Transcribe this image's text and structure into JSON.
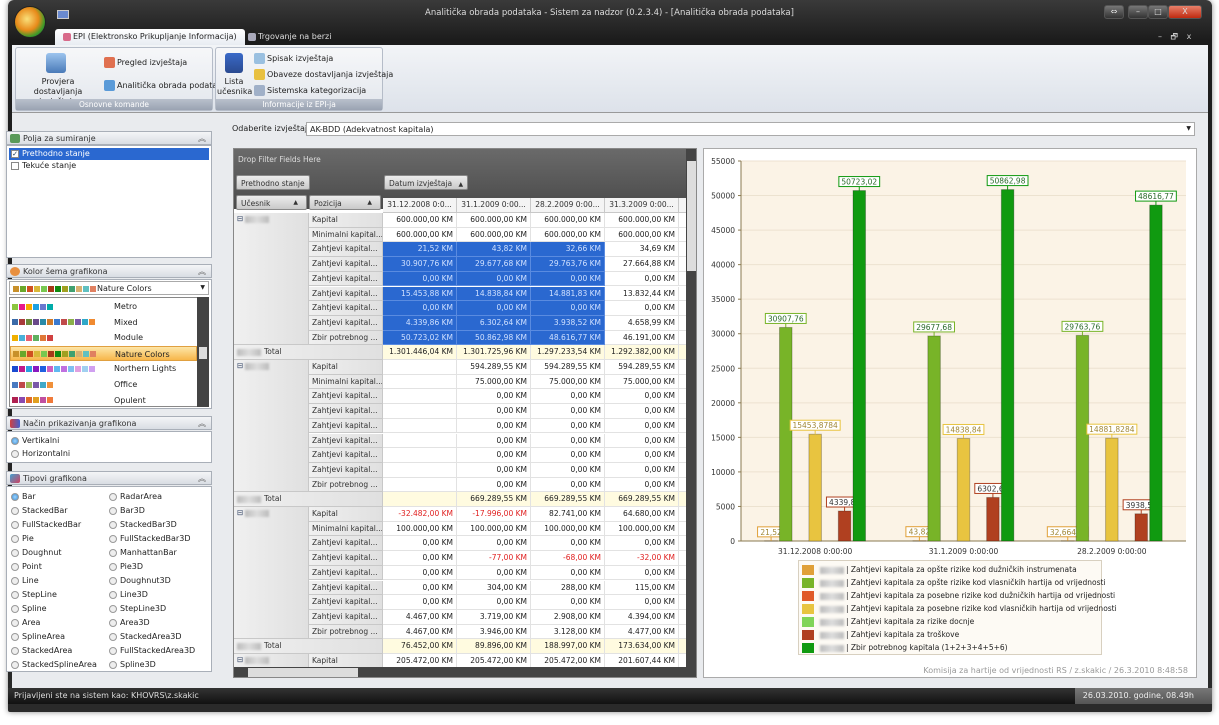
{
  "window": {
    "title": "Analitička obrada podataka - Sistem za nadzor (0.2.3.4) - [Analitička obrada podataka]",
    "buttons": [
      "⇔",
      "–",
      "□",
      "X"
    ],
    "mdi_buttons": [
      "–",
      "🗗",
      "x"
    ]
  },
  "tabs": [
    {
      "label": "EPI (Elektronsko Prikupljanje Informacija)",
      "active": true
    },
    {
      "label": "Trgovanje na berzi",
      "active": false
    }
  ],
  "ribbon": {
    "groups": [
      {
        "label": "Osnovne komande",
        "large": "Provjera dostavljanja izvještaja",
        "small": [
          "Pregled izvještaja",
          "Analitička obrada podataka"
        ]
      },
      {
        "label": "Informacije iz EPI-ja",
        "large": "Lista učesnika",
        "small": [
          "Spisak izvještaja",
          "Obaveze dostavljanja izvještaja",
          "Sistemska kategorizacija"
        ]
      }
    ]
  },
  "report": {
    "label": "Odaberite izvještaj:",
    "value": "AK-BDD (Adekvatnost kapitala)"
  },
  "left": {
    "sum_fields": {
      "title": "Polja za sumiranje",
      "items": [
        {
          "label": "Prethodno stanje",
          "checked": true
        },
        {
          "label": "Tekuće stanje",
          "checked": false
        }
      ]
    },
    "color_scheme": {
      "title": "Kolor šema grafikona",
      "selected": "Nature Colors",
      "selected_colors": [
        "#c8902a",
        "#6aa82a",
        "#d05020",
        "#d8b838",
        "#78c850",
        "#a83818",
        "#108a10",
        "#a0a020",
        "#40a070",
        "#d8b070",
        "#60c0c0",
        "#e08060"
      ],
      "options": [
        {
          "label": "Metro",
          "colors": [
            "#8cc63f",
            "#e8178a",
            "#f7a800",
            "#1ba1e2",
            "#6a79d0",
            "#00aba9"
          ]
        },
        {
          "label": "Mixed",
          "colors": [
            "#3a6aa8",
            "#a83a3a",
            "#6a8a3a",
            "#6a4a8a",
            "#2a8aa8",
            "#d07a2a",
            "#3a7ad0",
            "#c04a4a",
            "#8ab04a",
            "#7a5aa8",
            "#30a8c8",
            "#f08a30"
          ]
        },
        {
          "label": "Module",
          "colors": [
            "#f0b000",
            "#4ab0d8",
            "#e86070",
            "#60b060",
            "#e07838",
            "#d04040"
          ]
        },
        {
          "label": "Nature Colors",
          "colors": [
            "#c8902a",
            "#6aa82a",
            "#d05020",
            "#d8b838",
            "#78c850",
            "#a83818",
            "#108a10",
            "#a0a020",
            "#40a070",
            "#d8b070",
            "#60c0c0",
            "#e08060"
          ]
        },
        {
          "label": "Northern Lights",
          "colors": [
            "#1a4ad0",
            "#c01a8a",
            "#2aa0e0",
            "#8a1ac0",
            "#2060e0",
            "#d060c0",
            "#60b8f0",
            "#c070e0",
            "#80c0f0",
            "#e0a0e0",
            "#a0d0f0",
            "#d0a0f0"
          ]
        },
        {
          "label": "Office",
          "colors": [
            "#4a7ac0",
            "#c04a4a",
            "#9aba5a",
            "#7a5aa8",
            "#40a8c8",
            "#f0903a"
          ]
        },
        {
          "label": "Opulent",
          "colors": [
            "#b02050",
            "#8a4ab0",
            "#e06a2a",
            "#e0a020",
            "#c050a0",
            "#f07a3a"
          ]
        }
      ]
    },
    "display_mode": {
      "title": "Način prikazivanja grafikona",
      "items": [
        {
          "label": "Vertikalni",
          "selected": true
        },
        {
          "label": "Horizontalni",
          "selected": false
        }
      ]
    },
    "chart_types": {
      "title": "Tipovi grafikona",
      "selected": "Bar",
      "col1": [
        "Bar",
        "StackedBar",
        "FullStackedBar",
        "Pie",
        "Doughnut",
        "Point",
        "Line",
        "StepLine",
        "Spline",
        "Area",
        "SplineArea",
        "StackedArea",
        "StackedSplineArea"
      ],
      "col2": [
        "RadarArea",
        "Bar3D",
        "StackedBar3D",
        "FullStackedBar3D",
        "ManhattanBar",
        "Pie3D",
        "Doughnut3D",
        "Line3D",
        "StepLine3D",
        "Area3D",
        "StackedArea3D",
        "FullStackedArea3D",
        "Spline3D"
      ]
    }
  },
  "pivot": {
    "drop_filter": "Drop Filter Fields Here",
    "data_field": "Prethodno stanje",
    "column_field": "Datum izvještaja",
    "row_fields": [
      "Učesnik",
      "Pozicija"
    ],
    "sort_icon": "▲",
    "columns": [
      "31.12.2008 0:0...",
      "31.1.2009 0:00...",
      "28.2.2009 0:00...",
      "31.3.2009 0:00...",
      "3"
    ],
    "total_label": "Total",
    "collapse_icon": "⊟",
    "positions": [
      "Kapital",
      "Minimalni kapital...",
      "Zahtjevi kapital...",
      "Zahtjevi kapital...",
      "Zahtjevi kapital...",
      "Zahtjevi kapital...",
      "Zahtjevi kapital...",
      "Zahtjevi kapital...",
      "Zbir potrebnog ..."
    ],
    "groups": [
      {
        "rows": [
          [
            "600.000,00 KM",
            "600.000,00 KM",
            "600.000,00 KM",
            "600.000,00 KM"
          ],
          [
            "600.000,00 KM",
            "600.000,00 KM",
            "600.000,00 KM",
            "600.000,00 KM"
          ],
          [
            "21,52 KM",
            "43,82 KM",
            "32,66 KM",
            "34,69 KM"
          ],
          [
            "30.907,76 KM",
            "29.677,68 KM",
            "29.763,76 KM",
            "27.664,88 KM"
          ],
          [
            "0,00 KM",
            "0,00 KM",
            "0,00 KM",
            "0,00 KM"
          ],
          [
            "15.453,88 KM",
            "14.838,84 KM",
            "14.881,83 KM",
            "13.832,44 KM"
          ],
          [
            "0,00 KM",
            "0,00 KM",
            "0,00 KM",
            "0,00 KM"
          ],
          [
            "4.339,86 KM",
            "6.302,64 KM",
            "3.938,52 KM",
            "4.658,99 KM"
          ],
          [
            "50.723,02 KM",
            "50.862,98 KM",
            "48.616,77 KM",
            "46.191,00 KM"
          ]
        ],
        "total": [
          "1.301.446,04 KM",
          "1.301.725,96 KM",
          "1.297.233,54 KM",
          "1.292.382,00 KM"
        ],
        "selected_rows": [
          2,
          3,
          4,
          5,
          6,
          7,
          8
        ],
        "selected_cols": [
          0,
          1,
          2
        ]
      },
      {
        "rows": [
          [
            "",
            "594.289,55 KM",
            "594.289,55 KM",
            "594.289,55 KM"
          ],
          [
            "",
            "75.000,00 KM",
            "75.000,00 KM",
            "75.000,00 KM"
          ],
          [
            "",
            "0,00 KM",
            "0,00 KM",
            "0,00 KM"
          ],
          [
            "",
            "0,00 KM",
            "0,00 KM",
            "0,00 KM"
          ],
          [
            "",
            "0,00 KM",
            "0,00 KM",
            "0,00 KM"
          ],
          [
            "",
            "0,00 KM",
            "0,00 KM",
            "0,00 KM"
          ],
          [
            "",
            "0,00 KM",
            "0,00 KM",
            "0,00 KM"
          ],
          [
            "",
            "0,00 KM",
            "0,00 KM",
            "0,00 KM"
          ],
          [
            "",
            "0,00 KM",
            "0,00 KM",
            "0,00 KM"
          ]
        ],
        "total": [
          "",
          "669.289,55 KM",
          "669.289,55 KM",
          "669.289,55 KM"
        ]
      },
      {
        "rows": [
          [
            "-32.482,00 KM",
            "-17.996,00 KM",
            "82.741,00 KM",
            "64.680,00 KM"
          ],
          [
            "100.000,00 KM",
            "100.000,00 KM",
            "100.000,00 KM",
            "100.000,00 KM"
          ],
          [
            "0,00 KM",
            "0,00 KM",
            "0,00 KM",
            "0,00 KM"
          ],
          [
            "0,00 KM",
            "-77,00 KM",
            "-68,00 KM",
            "-32,00 KM"
          ],
          [
            "0,00 KM",
            "0,00 KM",
            "0,00 KM",
            "0,00 KM"
          ],
          [
            "0,00 KM",
            "304,00 KM",
            "288,00 KM",
            "115,00 KM"
          ],
          [
            "0,00 KM",
            "0,00 KM",
            "0,00 KM",
            "0,00 KM"
          ],
          [
            "4.467,00 KM",
            "3.719,00 KM",
            "2.908,00 KM",
            "4.394,00 KM"
          ],
          [
            "4.467,00 KM",
            "3.946,00 KM",
            "3.128,00 KM",
            "4.477,00 KM"
          ]
        ],
        "total": [
          "76.452,00 KM",
          "89.896,00 KM",
          "188.997,00 KM",
          "173.634,00 KM"
        ]
      },
      {
        "rows": [
          [
            "205.472,00 KM",
            "205.472,00 KM",
            "205.472,00 KM",
            "201.607,44 KM"
          ]
        ]
      }
    ]
  },
  "chart_data": {
    "type": "bar",
    "categories": [
      "31.12.2008 0:00:00",
      "31.1.2009 0:00:00",
      "28.2.2009 0:00:00"
    ],
    "ylim": [
      0,
      55000
    ],
    "yticks": [
      0,
      5000,
      10000,
      15000,
      20000,
      25000,
      30000,
      35000,
      40000,
      45000,
      50000,
      55000
    ],
    "grid": true,
    "legend_placement": "bottom",
    "series": [
      {
        "name": "| Zahtjevi kapitala za opšte rizike kod dužničkih instrumenata",
        "color": "#e0a038",
        "values": [
          21.52,
          43.82,
          32.66496
        ],
        "labels": [
          "21,52",
          "43,82",
          "32,66496"
        ]
      },
      {
        "name": "| Zahtjevi kapitala za opšte rizike kod vlasničkih hartija od vrijednosti",
        "color": "#78b428",
        "values": [
          30907.76,
          29677.68,
          29763.76
        ],
        "labels": [
          "30907,76",
          "29677,68",
          "29763,76"
        ]
      },
      {
        "name": "| Zahtjevi kapitala za posebne rizike kod dužničkih hartija od vrijednosti",
        "color": "#e05a28",
        "values": [
          0,
          0,
          0
        ],
        "labels": [
          "",
          "",
          ""
        ]
      },
      {
        "name": "| Zahtjevi kapitala za posebne rizike kod vlasničkih hartija od vrijednosti",
        "color": "#e8c440",
        "values": [
          15453.8784,
          14838.84,
          14881.8284
        ],
        "labels": [
          "15453,8784",
          "14838,84",
          "14881,8284"
        ]
      },
      {
        "name": "| Zahtjevi kapitala za rizike docnje",
        "color": "#80d458",
        "values": [
          0,
          0,
          0
        ],
        "labels": [
          "",
          "",
          ""
        ]
      },
      {
        "name": "| Zahtjevi kapitala za troškove",
        "color": "#b04020",
        "values": [
          4339.86,
          6302.64,
          3938.52
        ],
        "labels": [
          "4339,86",
          "6302,64",
          "3938,52"
        ]
      },
      {
        "name": "| Zbir potrebnog kapitala (1+2+3+4+5+6)",
        "color": "#109a10",
        "values": [
          50723.02,
          50862.98,
          48616.77
        ],
        "labels": [
          "50723,02",
          "50862,98",
          "48616,77"
        ]
      }
    ],
    "footer": "Komisija za hartije od vrijednosti RS / z.skakic / 26.3.2010 8:48:58"
  },
  "status": {
    "login": "Prijavljeni ste na sistem kao: KHOVRS\\z.skakic",
    "datetime": "26.03.2010. godine, 08.49h"
  }
}
